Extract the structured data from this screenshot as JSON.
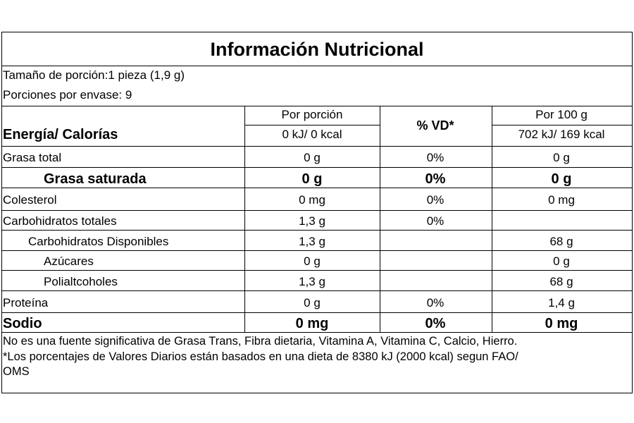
{
  "title": "Información Nutricional",
  "serving": [
    "Tamaño de porción:1 pieza (1,9 g)",
    "Porciones por envase: 9"
  ],
  "header": {
    "energy_label": "Energía/ Calorías",
    "per_portion": "Por porción",
    "per_portion_energy": "0 kJ/ 0 kcal",
    "vd": "% VD*",
    "per_100": "Por 100 g",
    "per_100_energy": "702 kJ/ 169 kcal"
  },
  "rows": [
    [
      "Grasa total",
      "0 g",
      "0%",
      "0 g"
    ],
    [
      "Grasa saturada",
      "0 g",
      "0%",
      "0 g"
    ],
    [
      "Colesterol",
      "0 mg",
      "0%",
      "0 mg"
    ],
    [
      "Carbohidratos totales",
      "1,3 g",
      "0%",
      null
    ],
    [
      "Carbohidratos Disponibles",
      "1,3 g",
      null,
      "68 g"
    ],
    [
      "Azúcares",
      "0 g",
      null,
      "0 g"
    ],
    [
      "Polialtcoholes",
      "1,3 g",
      null,
      "68 g"
    ],
    [
      "Proteína",
      "0 g",
      "0%",
      "1,4 g"
    ],
    [
      "Sodio",
      "0 mg",
      "0%",
      "0 mg"
    ]
  ],
  "footnotes": [
    "No es una fuente significativa de Grasa Trans, Fibra dietaria, Vitamina A, Vitamina C, Calcio, Hierro.",
    "*Los porcentajes de Valores Diarios están basados en una dieta de 8380 kJ (2000 kcal) segun FAO/",
    "OMS"
  ]
}
